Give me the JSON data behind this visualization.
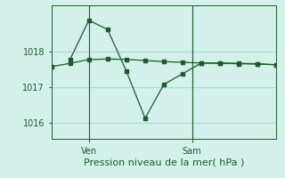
{
  "title": "Pression niveau de la mer( hPa )",
  "bg_color": "#d4f0eb",
  "grid_color": "#a8ddd6",
  "line_color": "#1a5c2a",
  "ylim": [
    1015.55,
    1019.3
  ],
  "yticks": [
    1016,
    1017,
    1018
  ],
  "ylabel_fontsize": 7,
  "xlabel_fontsize": 8,
  "line1_x": [
    0,
    1,
    2,
    3,
    4,
    5,
    6,
    7,
    8,
    9,
    10,
    11,
    12
  ],
  "line1_y": [
    1017.58,
    1017.67,
    1017.78,
    1017.79,
    1017.78,
    1017.75,
    1017.72,
    1017.7,
    1017.68,
    1017.67,
    1017.66,
    1017.65,
    1017.63
  ],
  "line2_x": [
    1,
    2,
    3,
    4,
    5,
    6,
    7,
    8,
    9,
    10,
    11,
    12
  ],
  "line2_y": [
    1017.78,
    1018.88,
    1018.62,
    1017.45,
    1016.13,
    1017.08,
    1017.38,
    1017.68,
    1017.68,
    1017.67,
    1017.66,
    1017.63
  ],
  "xlim": [
    0,
    12
  ],
  "ven_x": 2.0,
  "sam_x": 7.5
}
